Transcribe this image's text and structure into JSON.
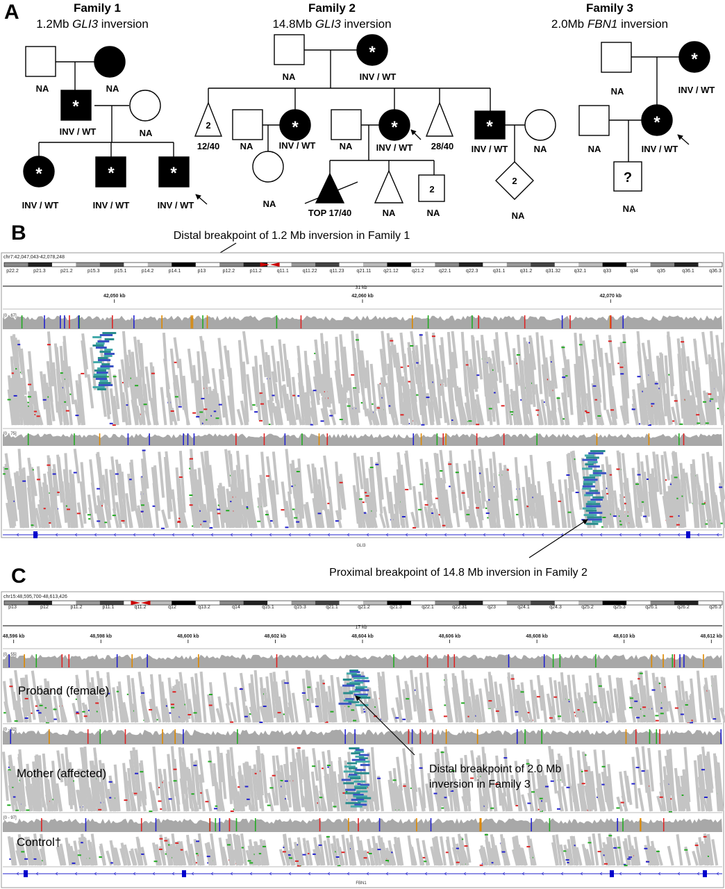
{
  "panels": {
    "A": "A",
    "B": "B",
    "C": "C"
  },
  "family1": {
    "title": "Family 1",
    "subtitle_pre": "1.2Mb ",
    "gene": "GLI3",
    "subtitle_post": " inversion",
    "labels": {
      "gf": "NA",
      "gm": "NA",
      "father": "INV / WT",
      "mother": "NA",
      "child1": "INV / WT",
      "child2": "INV / WT",
      "child3": "INV / WT"
    }
  },
  "family2": {
    "title": "Family 2",
    "subtitle_pre": "14.8Mb ",
    "gene": "GLI3",
    "subtitle_post": " inversion",
    "labels": {
      "gf": "NA",
      "gm": "INV / WT",
      "preg1_count": "2",
      "preg1": "12/40",
      "spouse1": "NA",
      "dau1": "INV / WT",
      "dau1_child": "NA",
      "spouse2": "NA",
      "proband": "INV / WT",
      "preg2": "28/40",
      "son": "INV / WT",
      "son_spouse": "NA",
      "top": "TOP 17/40",
      "preg3": "NA",
      "male_count": "2",
      "male_na": "NA",
      "diamond_count": "2",
      "diamond_na": "NA"
    }
  },
  "family3": {
    "title": "Family 3",
    "subtitle_pre": "2.0Mb ",
    "gene": "FBN1",
    "subtitle_post": " inversion",
    "labels": {
      "gf": "NA",
      "gm": "INV / WT",
      "father": "NA",
      "proband": "INV / WT",
      "child_mark": "?",
      "child": "NA"
    }
  },
  "panelB": {
    "locus": "chr7:42,047,043-42,078,248",
    "span": "31 kb",
    "ticks": [
      "42,050 kb",
      "42,060 kb",
      "42,070 kb"
    ],
    "bands": [
      "p22.2",
      "p21.3",
      "p21.2",
      "p15.3",
      "p15.1",
      "p14.2",
      "p14.1",
      "p13",
      "p12.2",
      "p11.2",
      "q11.1",
      "q11.22",
      "q11.23",
      "q21.11",
      "q21.12",
      "q21.2",
      "q22.1",
      "q22.3",
      "q31.1",
      "q31.2",
      "q31.32",
      "q32.1",
      "q33",
      "q34",
      "q35",
      "q36.1",
      "q36.3"
    ],
    "track1_range": "[0 - 67]",
    "track2_range": "[0 - 75]",
    "gene": "GLI3",
    "annot_top": "Distal breakpoint of 1.2 Mb inversion in Family 1",
    "annot_bottom": "Proximal breakpoint of 14.8 Mb inversion in Family 2"
  },
  "panelC": {
    "locus": "chr15:48,595,700-48,613,426",
    "span": "17 kb",
    "ticks": [
      "48,596 kb",
      "48,598 kb",
      "48,600 kb",
      "48,602 kb",
      "48,604 kb",
      "48,606 kb",
      "48,608 kb",
      "48,610 kb",
      "48,612 kb"
    ],
    "bands": [
      "p13",
      "p12",
      "p11.2",
      "p11.1",
      "q11.2",
      "q12",
      "q13.2",
      "q14",
      "q15.1",
      "q15.3",
      "q21.1",
      "q21.2",
      "q21.3",
      "q22.1",
      "q22.31",
      "q23",
      "q24.1",
      "q24.3",
      "q25.2",
      "q25.3",
      "q26.1",
      "q26.2",
      "q26.3"
    ],
    "track1_range": "[0 - 55]",
    "track2_range": "[0 - 92]",
    "track3_range": "[0 - 97]",
    "track1_label": "Proband (female)",
    "track2_label": "Mother (affected)",
    "track3_label": "Control†",
    "gene": "FBN1",
    "annot_line1": "Distal breakpoint of 2.0 Mb",
    "annot_line2": "inversion in Family 3"
  }
}
